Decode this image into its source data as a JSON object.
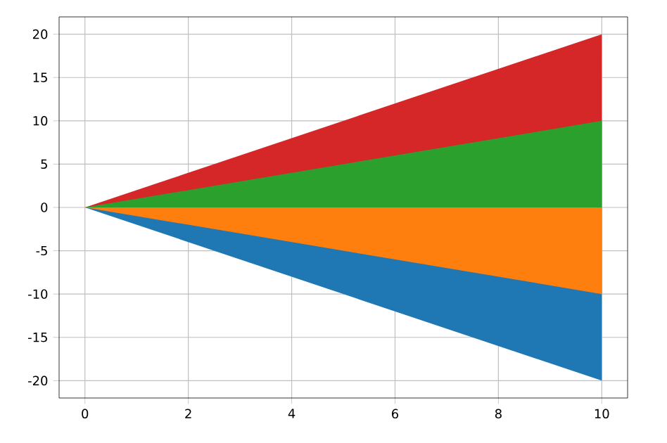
{
  "chart_data": {
    "type": "area",
    "x": [
      0,
      10
    ],
    "series": [
      {
        "color": "#1f77b4",
        "values": [
          0,
          -20
        ]
      },
      {
        "color": "#ff7f0e",
        "values": [
          0,
          -10
        ]
      },
      {
        "color": "#d62728",
        "values": [
          0,
          20
        ]
      },
      {
        "color": "#2ca02c",
        "values": [
          0,
          10
        ]
      }
    ],
    "xlim": [
      -0.5,
      10.5
    ],
    "ylim": [
      -22,
      22
    ],
    "xticks": [
      0,
      2,
      4,
      6,
      8,
      10
    ],
    "yticks": [
      -20,
      -15,
      -10,
      -5,
      0,
      5,
      10,
      15,
      20
    ],
    "grid": true
  }
}
